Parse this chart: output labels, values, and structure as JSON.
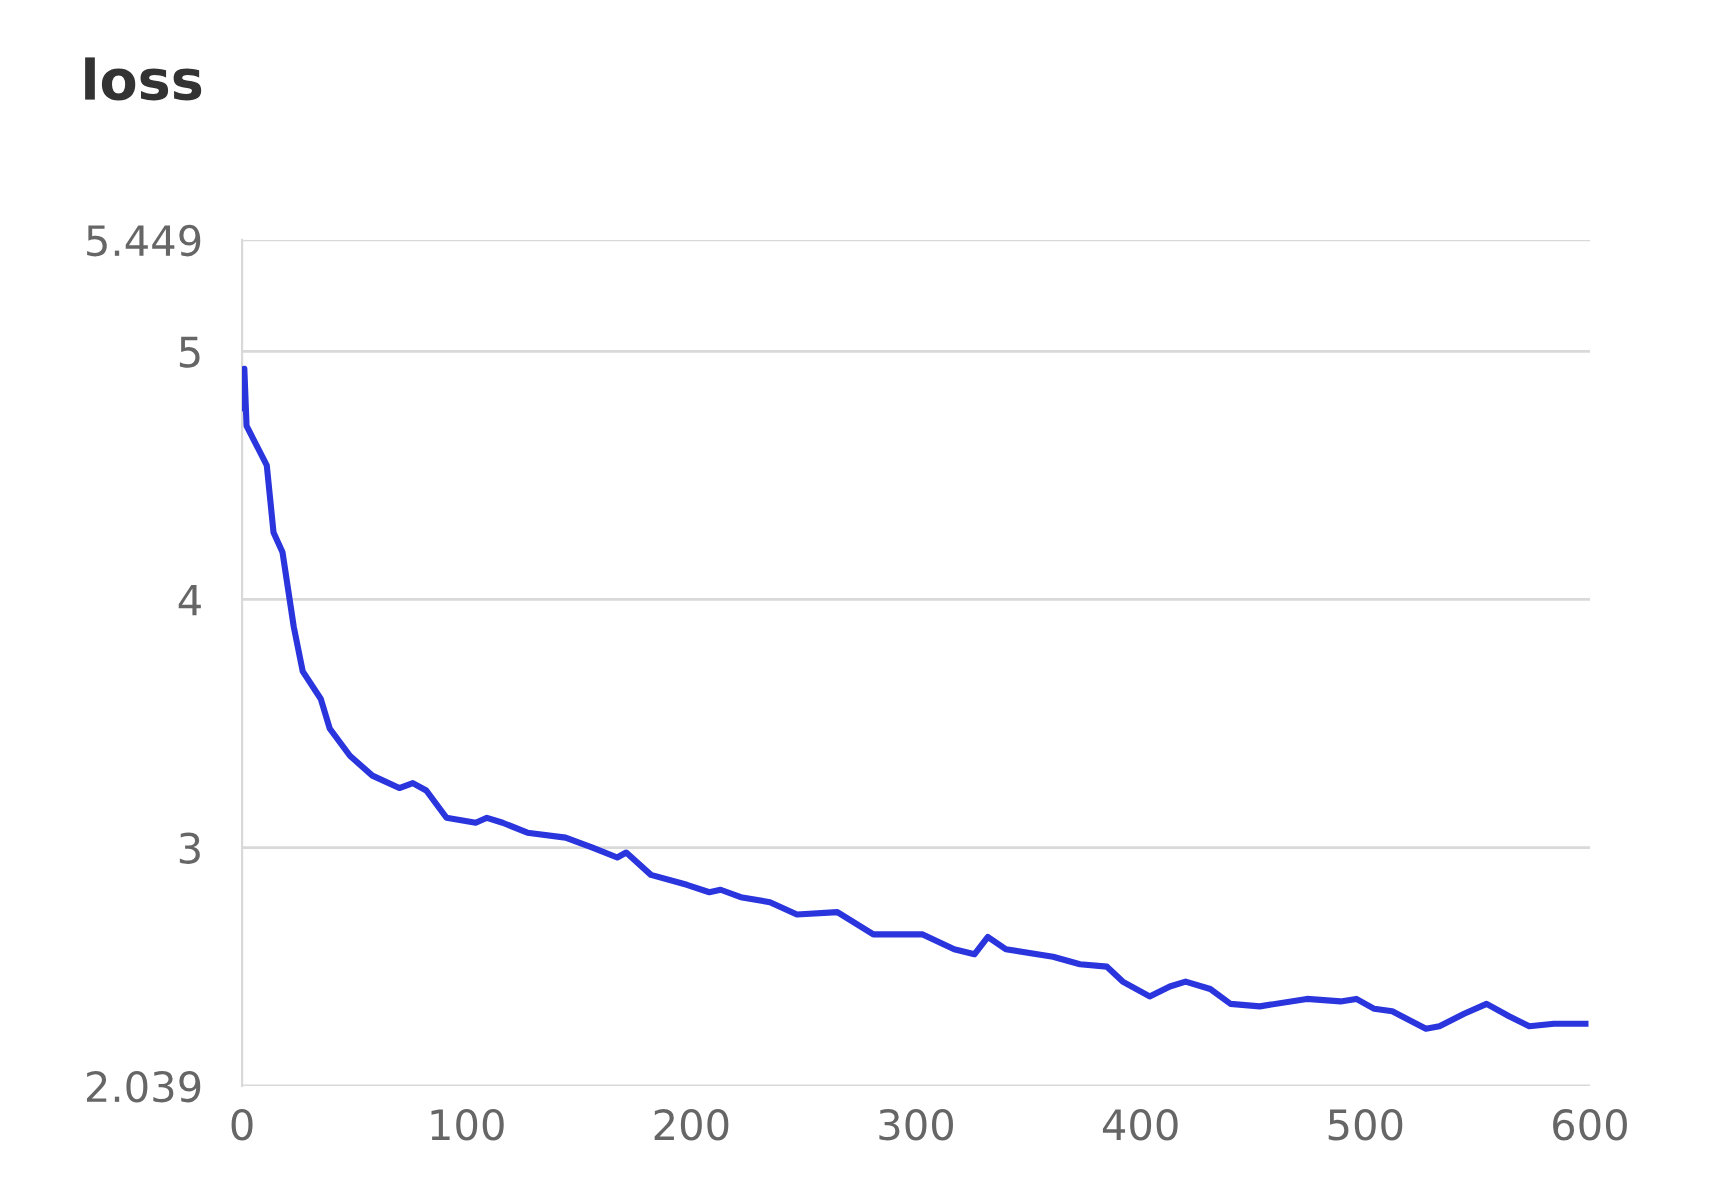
{
  "chart_data": {
    "type": "line",
    "title": "loss",
    "x": [
      0,
      1,
      2,
      11,
      14,
      18,
      23,
      27,
      35,
      39,
      48,
      58,
      70,
      76,
      82,
      91,
      104,
      109,
      116,
      127,
      144,
      156,
      167,
      171,
      182,
      198,
      208,
      213,
      222,
      235,
      247,
      265,
      281,
      303,
      317,
      326,
      332,
      340,
      361,
      373,
      385,
      392,
      404,
      413,
      420,
      431,
      440,
      453,
      474,
      489,
      496,
      504,
      512,
      527,
      533,
      544,
      554,
      564,
      573,
      584,
      593,
      598
    ],
    "series": [
      {
        "color": "#2b35dd",
        "values": [
          4.77,
          4.93,
          4.7,
          4.54,
          4.27,
          4.19,
          3.89,
          3.71,
          3.6,
          3.48,
          3.37,
          3.29,
          3.24,
          3.26,
          3.23,
          3.12,
          3.1,
          3.12,
          3.1,
          3.06,
          3.04,
          3.0,
          2.96,
          2.98,
          2.89,
          2.85,
          2.82,
          2.83,
          2.8,
          2.78,
          2.73,
          2.74,
          2.65,
          2.65,
          2.59,
          2.57,
          2.64,
          2.59,
          2.56,
          2.53,
          2.52,
          2.46,
          2.4,
          2.44,
          2.46,
          2.43,
          2.37,
          2.36,
          2.39,
          2.38,
          2.39,
          2.35,
          2.34,
          2.27,
          2.28,
          2.33,
          2.37,
          2.32,
          2.28,
          2.29,
          2.29,
          2.29
        ]
      }
    ],
    "xlim": [
      0,
      600
    ],
    "xticks": [
      0,
      100,
      200,
      300,
      400,
      500,
      600
    ],
    "ylim": [
      2.039,
      5.449
    ],
    "yticks": [
      2.039,
      3,
      4,
      5,
      5.449
    ],
    "grid": "y",
    "legend": false,
    "marker": "none",
    "line_style": "solid"
  }
}
